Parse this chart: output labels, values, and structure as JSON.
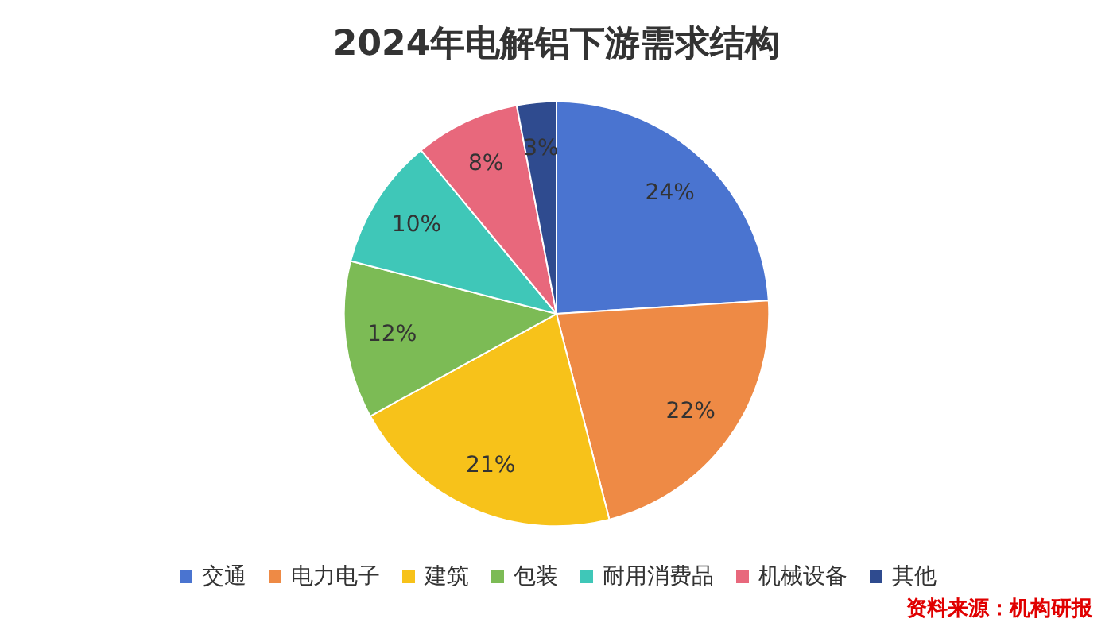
{
  "chart_data": {
    "type": "pie",
    "title": "2024年电解铝下游需求结构",
    "categories": [
      "交通",
      "电力电子",
      "建筑",
      "包装",
      "耐用消费品",
      "机械设备",
      "其他"
    ],
    "values": [
      24,
      22,
      21,
      12,
      10,
      8,
      3
    ],
    "colors": [
      "#4a74d0",
      "#ee8a45",
      "#f7c21a",
      "#7cbb55",
      "#3fc7b8",
      "#e8687c",
      "#2f4b8f"
    ],
    "value_labels": [
      "24%",
      "22%",
      "21%",
      "12%",
      "10%",
      "8%",
      "3%"
    ],
    "legend": "bottom",
    "annotations": [
      "资料来源：机构研报"
    ]
  }
}
